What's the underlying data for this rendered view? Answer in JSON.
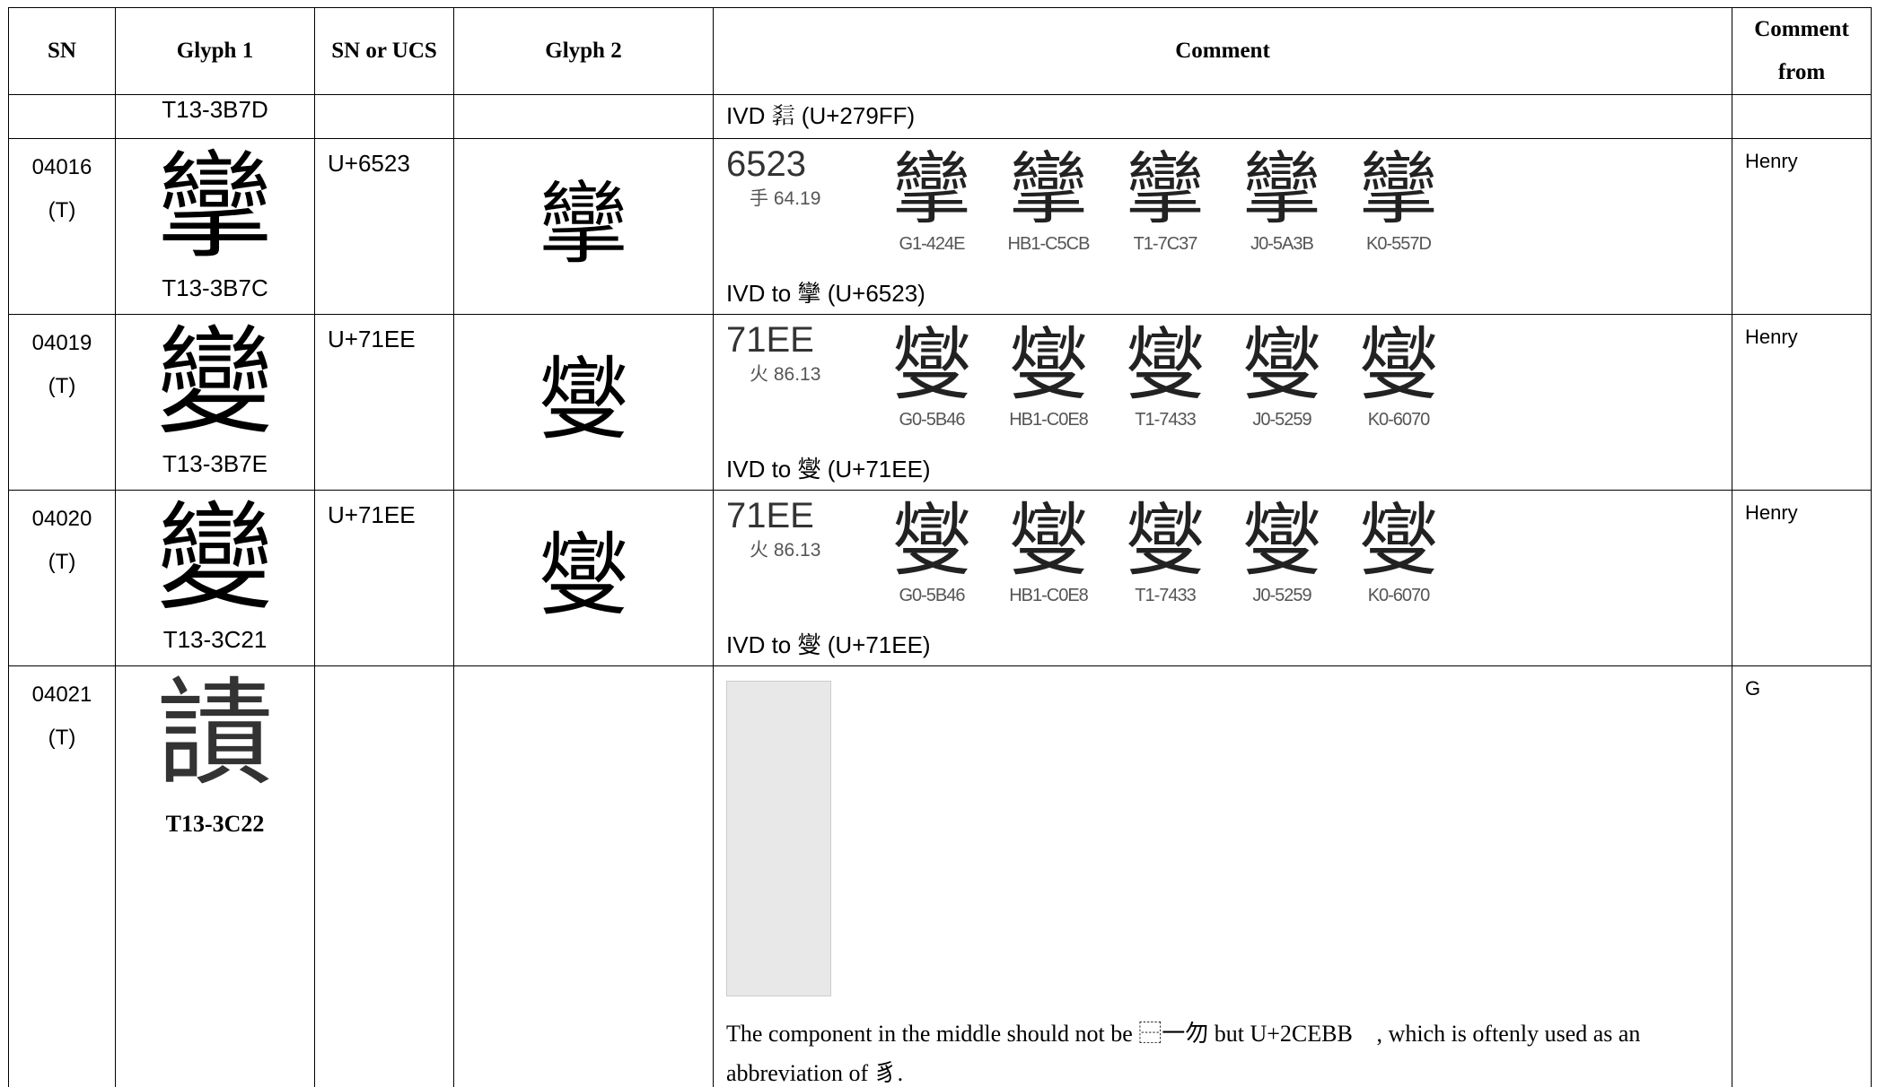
{
  "table": {
    "header": [
      "SN",
      "Glyph 1",
      "SN or UCS",
      "Glyph 2",
      "Comment",
      "Comment from"
    ],
    "rows": [
      {
        "sn": null,
        "sub": null,
        "glyph1": null,
        "code1": "T13-3B7D",
        "ucs": null,
        "glyph2": null,
        "evidence": null,
        "comment": "IVD 𧧿 (U+279FF)",
        "from": null
      },
      {
        "sn": "04016",
        "sub": "(T)",
        "glyph1": "攣",
        "code1": "T13-3B7C",
        "ucs": "U+6523",
        "glyph2": "攣",
        "evidence": {
          "code": "6523",
          "radical": "手 64.19",
          "sources": [
            {
              "glyph": "攣",
              "label": "G1-424E"
            },
            {
              "glyph": "攣",
              "label": "HB1-C5CB"
            },
            {
              "glyph": "攣",
              "label": "T1-7C37"
            },
            {
              "glyph": "攣",
              "label": "J0-5A3B"
            },
            {
              "glyph": "攣",
              "label": "K0-557D"
            }
          ]
        },
        "comment": "IVD to 攣 (U+6523)",
        "from": "Henry"
      },
      {
        "sn": "04019",
        "sub": "(T)",
        "glyph1": "變",
        "code1": "T13-3B7E",
        "ucs": "U+71EE",
        "glyph2": "燮",
        "evidence": {
          "code": "71EE",
          "radical": "火 86.13",
          "sources": [
            {
              "glyph": "燮",
              "label": "G0-5B46"
            },
            {
              "glyph": "燮",
              "label": "HB1-C0E8"
            },
            {
              "glyph": "燮",
              "label": "T1-7433"
            },
            {
              "glyph": "燮",
              "label": "J0-5259"
            },
            {
              "glyph": "燮",
              "label": "K0-6070"
            }
          ]
        },
        "comment": "IVD to 燮 (U+71EE)",
        "from": "Henry"
      },
      {
        "sn": "04020",
        "sub": "(T)",
        "glyph1": "變",
        "code1": "T13-3C21",
        "ucs": "U+71EE",
        "glyph2": "燮",
        "evidence": {
          "code": "71EE",
          "radical": "火 86.13",
          "sources": [
            {
              "glyph": "燮",
              "label": "G0-5B46"
            },
            {
              "glyph": "燮",
              "label": "HB1-C0E8"
            },
            {
              "glyph": "燮",
              "label": "T1-7433"
            },
            {
              "glyph": "燮",
              "label": "J0-5259"
            },
            {
              "glyph": "燮",
              "label": "K0-6070"
            }
          ]
        },
        "comment": "IVD to 燮 (U+71EE)",
        "from": "Henry"
      },
      {
        "sn": "04021",
        "sub": "(T)",
        "glyph1": "謮",
        "code1": "T13-3C22",
        "ucs": null,
        "glyph2": null,
        "evidence": null,
        "scan": true,
        "comment": "The component in the middle should not be ⿱一勿 but U+2CEBB 𬺻, which is oftenly used as an abbreviation of 豸.",
        "from": "G"
      }
    ]
  }
}
